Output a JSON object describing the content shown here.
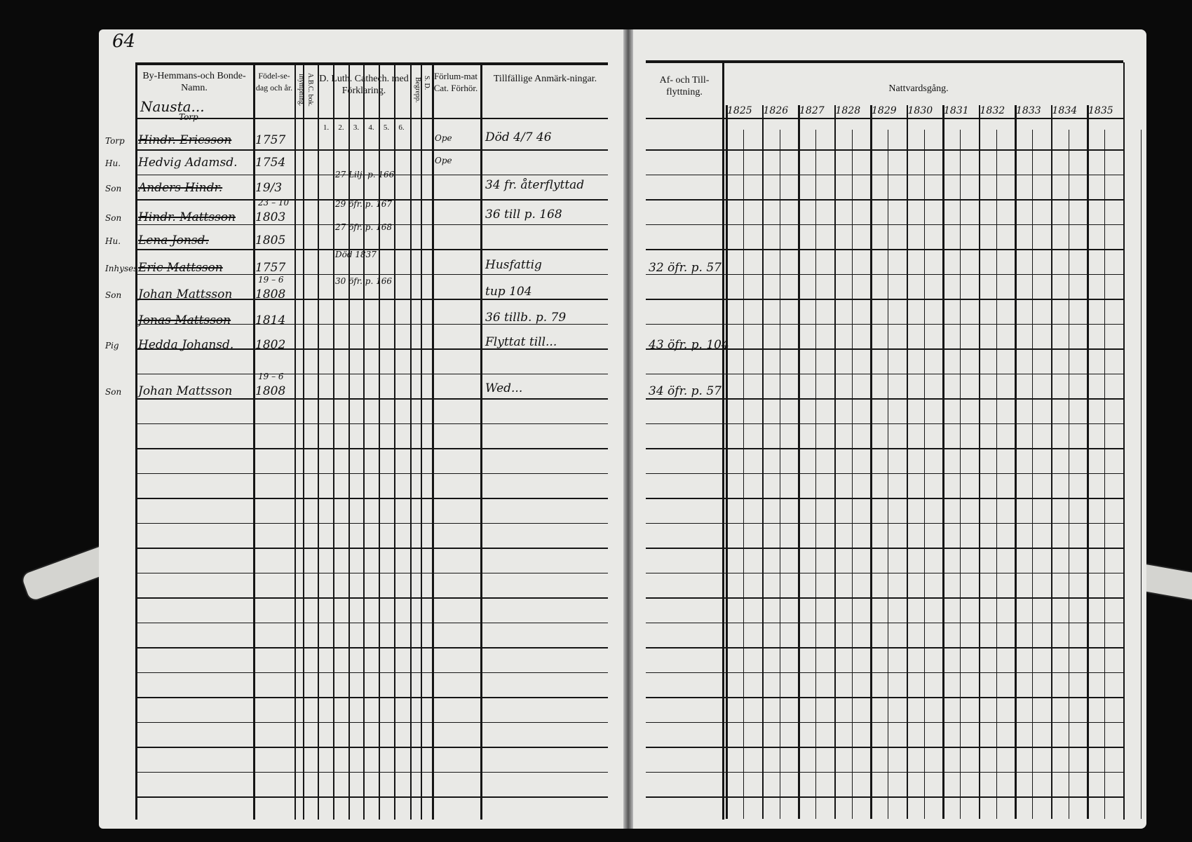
{
  "page_number": "64",
  "left_page": {
    "headers": {
      "name": "By-Hemmans-och Bonde-Namn.",
      "birth": "Födel-se-dag och år.",
      "vaccination": "Inympning.",
      "abc_book": "A.B.C. bok.",
      "catechism": "D. Luth. Cathech. med Förklaring.",
      "catechism_subcols": [
        "1.",
        "2.",
        "3.",
        "4.",
        "5.",
        "6."
      ],
      "understanding": "Begrepp.",
      "sd": "S. D.",
      "examination": "Förlum-mat Cat. Förhör.",
      "remarks": "Tillfällige Anmärk-ningar."
    },
    "farm_name": "Nausta...",
    "farm_sub": "Torp",
    "entries": [
      {
        "role": "Torp",
        "name": "Hindr. Ericsson",
        "birth": "1757",
        "exam": "Ope",
        "remark": "Död 4/7 46"
      },
      {
        "role": "Hu.",
        "name": "Hedvig Adamsd.",
        "birth": "1754",
        "exam": "Ope",
        "remark": ""
      },
      {
        "role": "Son",
        "name": "Anders Hindr.",
        "birth": "19/3",
        "note": "27 Lilj. p. 166",
        "remark": "34 fr. återflyttad"
      },
      {
        "role": "Son",
        "name": "Hindr. Mattsson",
        "birth": "1803",
        "birth_day": "23 – 10",
        "note": "29 öfr. p. 167",
        "remark": "36 till p. 168"
      },
      {
        "role": "Hu.",
        "name": "Lena Jonsd.",
        "birth": "1805",
        "note": "27 öfr. p. 168",
        "remark": ""
      },
      {
        "role": "Inhyses",
        "name": "Eric Mattsson",
        "birth": "1757",
        "note": "Död 1837",
        "remark": "Husfattig"
      },
      {
        "role": "Son",
        "name": "Johan Mattsson",
        "birth": "1808",
        "birth_day": "19 – 6",
        "note": "30 öfr. p. 166",
        "remark": "tup 104"
      },
      {
        "role": "",
        "name": "Jonas Mattsson",
        "birth": "1814",
        "remark": "36 tillb. p. 79"
      },
      {
        "role": "Pig",
        "name": "Hedda Johansd.",
        "birth": "1802",
        "remark": "Flyttat till..."
      },
      {
        "role": "Son",
        "name": "Johan Mattsson",
        "birth": "1808",
        "birth_day": "19 – 6",
        "remark": "Wed..."
      }
    ]
  },
  "right_page": {
    "headers": {
      "moves": "Af- och Till-flyttning.",
      "communion": "Nattvardsgång."
    },
    "years": [
      "1825",
      "1826",
      "1827",
      "1828",
      "1829",
      "1830",
      "1831",
      "1832",
      "1833",
      "1834",
      "1835"
    ],
    "moves": [
      "32 öfr. p. 57",
      "43 öfr. p. 104",
      "34 öfr. p. 57"
    ]
  }
}
